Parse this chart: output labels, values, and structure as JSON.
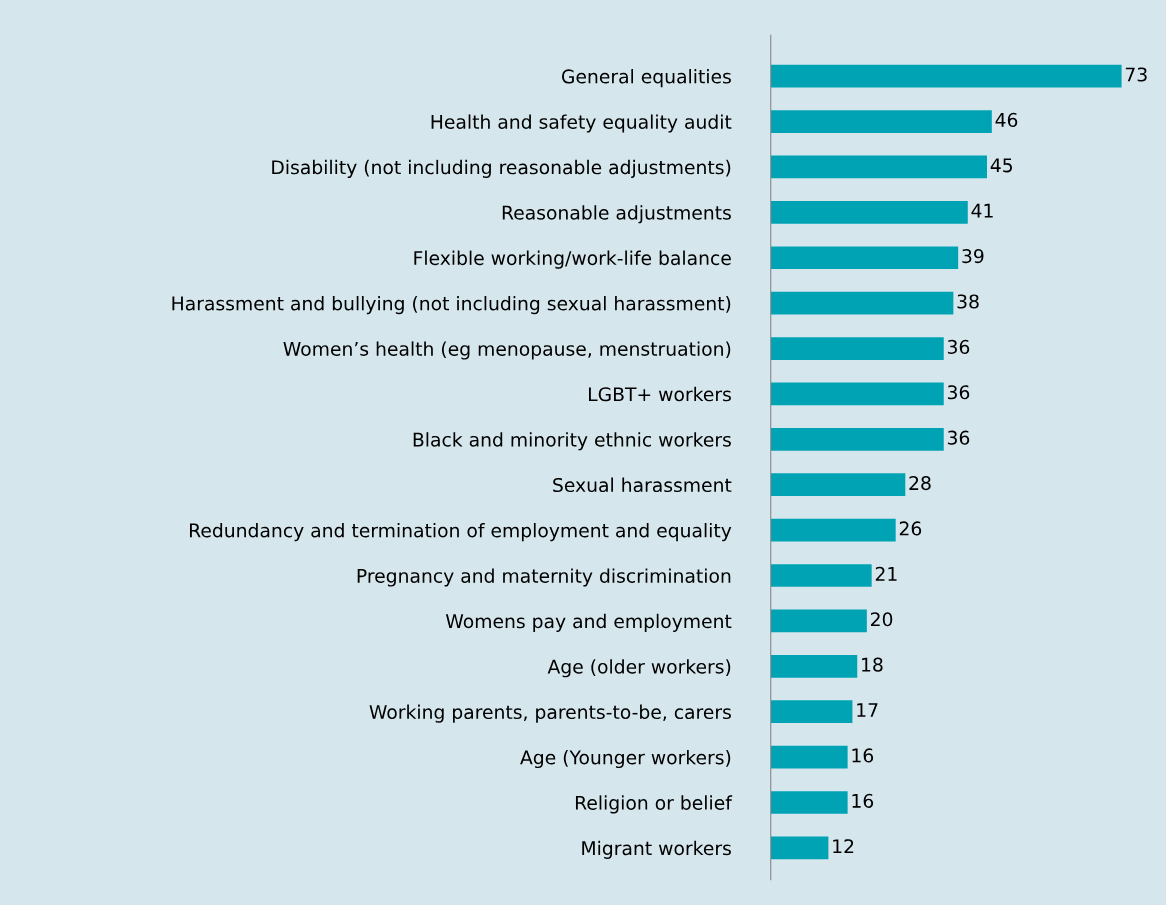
{
  "chart_data": {
    "type": "bar",
    "orientation": "horizontal",
    "data_labels": true,
    "grid": false,
    "legend": false,
    "categories": [
      "General equalities",
      "Health and safety equality audit",
      "Disability (not including reasonable adjustments)",
      "Reasonable adjustments",
      "Flexible working/work-life balance",
      "Harassment and bullying (not including sexual harassment)",
      "Women’s health (eg menopause, menstruation)",
      "LGBT+ workers",
      "Black and minority ethnic workers",
      "Sexual harassment",
      "Redundancy and termination of employment and equality",
      "Pregnancy and maternity discrimination",
      "Womens pay and employment",
      "Age (older workers)",
      "Working parents, parents-to-be, carers",
      "Age (Younger workers)",
      "Religion or belief",
      "Migrant workers"
    ],
    "values": [
      73,
      46,
      45,
      41,
      39,
      38,
      36,
      36,
      36,
      28,
      26,
      21,
      20,
      18,
      17,
      16,
      16,
      12
    ],
    "color": "#00a3b4"
  }
}
